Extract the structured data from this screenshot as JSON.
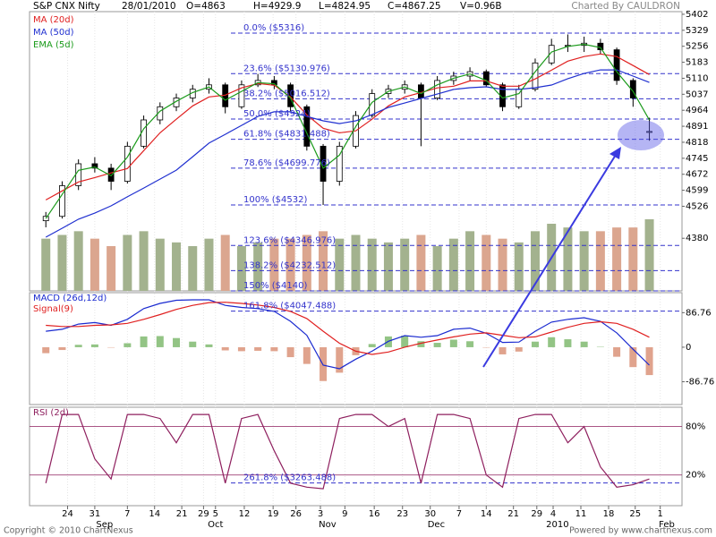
{
  "chart_data": {
    "type": "candlestick",
    "title": "S&P CNX Nifty",
    "date": "28/01/2010",
    "quote_labels": [
      "O=4863",
      "H=4929.9",
      "L=4824.95",
      "C=4867.25",
      "V=0.96B"
    ],
    "credit": "Charted By CAULDRON",
    "footer_left": "Copyright © 2010 ChartNexus",
    "footer_right": "Powered by www.chartnexus.com",
    "xlim": [
      0,
      120
    ],
    "xticks": [
      {
        "value": 7,
        "label": "24"
      },
      {
        "value": 12,
        "label": "31"
      },
      {
        "value": 18,
        "label": "7"
      },
      {
        "value": 23,
        "label": "14"
      },
      {
        "value": 28,
        "label": "21"
      },
      {
        "value": 32,
        "label": "29"
      },
      {
        "value": 34.2,
        "label": "5"
      },
      {
        "value": 39.5,
        "label": "12"
      },
      {
        "value": 44.8,
        "label": "19"
      },
      {
        "value": 49,
        "label": "26"
      },
      {
        "value": 53.5,
        "label": "3"
      },
      {
        "value": 58,
        "label": "9"
      },
      {
        "value": 63.4,
        "label": "16"
      },
      {
        "value": 68.6,
        "label": "23"
      },
      {
        "value": 73.7,
        "label": "30"
      },
      {
        "value": 79,
        "label": "7"
      },
      {
        "value": 84,
        "label": "14"
      },
      {
        "value": 89,
        "label": "21"
      },
      {
        "value": 93.3,
        "label": "29"
      },
      {
        "value": 96.3,
        "label": "4"
      },
      {
        "value": 101.4,
        "label": "11"
      },
      {
        "value": 106.5,
        "label": "18"
      },
      {
        "value": 111.4,
        "label": "25"
      },
      {
        "value": 116,
        "label": "1"
      }
    ],
    "month_ticks": [
      {
        "value": 13.8,
        "label": "Sep"
      },
      {
        "value": 34.2,
        "label": "Oct"
      },
      {
        "value": 54.8,
        "label": "Nov"
      },
      {
        "value": 74.8,
        "label": "Dec"
      },
      {
        "value": 97.1,
        "label": "2010"
      },
      {
        "value": 117.2,
        "label": "Feb"
      }
    ],
    "ylim": [
      4140,
      5414
    ],
    "yticks": [
      5402,
      5329,
      5256,
      5183,
      5110,
      5037,
      4964,
      4891,
      4818,
      4745,
      4672,
      4599,
      4526,
      4380
    ],
    "x": [
      3,
      6,
      9,
      12,
      15,
      18,
      21,
      24,
      27,
      30,
      33,
      36,
      39,
      42,
      45,
      48,
      51,
      54,
      57,
      60,
      63,
      66,
      69,
      72,
      75,
      78,
      81,
      84,
      87,
      90,
      93,
      96,
      99,
      102,
      105,
      108,
      111,
      114
    ],
    "open": [
      4460,
      4480,
      4620,
      4720,
      4700,
      4640,
      4800,
      4920,
      4980,
      5020,
      5060,
      5080,
      4980,
      5080,
      5100,
      5080,
      4980,
      4800,
      4640,
      4800,
      4940,
      5040,
      5060,
      5080,
      5020,
      5100,
      5120,
      5140,
      5080,
      4980,
      5060,
      5180,
      5260,
      5260,
      5270,
      5240,
      5100,
      4863
    ],
    "high": [
      4500,
      4640,
      4740,
      4750,
      4720,
      4820,
      4940,
      5000,
      5040,
      5080,
      5110,
      5090,
      5100,
      5130,
      5120,
      5090,
      4990,
      4810,
      4820,
      4960,
      5060,
      5080,
      5100,
      5090,
      5120,
      5140,
      5160,
      5150,
      5090,
      5080,
      5200,
      5290,
      5310,
      5300,
      5290,
      5250,
      5110,
      4929.9
    ],
    "low": [
      4430,
      4470,
      4600,
      4680,
      4600,
      4630,
      4790,
      4900,
      4960,
      5000,
      5040,
      4950,
      4970,
      5070,
      5060,
      4960,
      4780,
      4532,
      4620,
      4790,
      4930,
      5020,
      5040,
      4800,
      5010,
      5080,
      5100,
      5070,
      4960,
      4970,
      5050,
      5170,
      5230,
      5230,
      5220,
      5080,
      4980,
      4824.95
    ],
    "close": [
      4480,
      4620,
      4720,
      4700,
      4640,
      4800,
      4920,
      4980,
      5020,
      5060,
      5080,
      4980,
      5080,
      5100,
      5080,
      4980,
      4800,
      4640,
      4800,
      4940,
      5040,
      5060,
      5080,
      5020,
      5100,
      5120,
      5140,
      5080,
      4980,
      5060,
      5180,
      5260,
      5260,
      5270,
      5240,
      5100,
      5020,
      4867.25
    ],
    "lines": [
      {
        "name": "MA (20d)",
        "color": "#e02020",
        "values": [
          4555,
          4596,
          4637,
          4657,
          4678,
          4698,
          4780,
          4861,
          4923,
          4984,
          5025,
          5033,
          5066,
          5086,
          5078,
          5025,
          4943,
          4882,
          4861,
          4870,
          4923,
          4984,
          5025,
          5045,
          5066,
          5074,
          5098,
          5098,
          5074,
          5074,
          5107,
          5147,
          5188,
          5209,
          5221,
          5209,
          5168,
          5127
        ]
      },
      {
        "name": "MA (50d)",
        "color": "#2030d0",
        "values": [
          4385,
          4426,
          4467,
          4495,
          4528,
          4569,
          4609,
          4650,
          4691,
          4752,
          4814,
          4854,
          4895,
          4936,
          4957,
          4957,
          4936,
          4916,
          4903,
          4916,
          4944,
          4977,
          4997,
          5018,
          5038,
          5059,
          5067,
          5071,
          5059,
          5059,
          5067,
          5079,
          5108,
          5132,
          5148,
          5148,
          5120,
          5091
        ]
      },
      {
        "name": "EMA (5d)",
        "color": "#1a9a1a",
        "values": [
          4470,
          4580,
          4690,
          4705,
          4665,
          4750,
          4880,
          4960,
          5005,
          5045,
          5070,
          5010,
          5050,
          5090,
          5085,
          5020,
          4860,
          4700,
          4760,
          4890,
          5000,
          5050,
          5070,
          5040,
          5080,
          5110,
          5130,
          5100,
          5020,
          5040,
          5140,
          5230,
          5255,
          5265,
          5250,
          5140,
          5050,
          4920
        ]
      }
    ],
    "volume": {
      "vlim": [
        0,
        1.2
      ],
      "up_color": "#a3b28e",
      "down_color": "#dba68f",
      "values": [
        0.7,
        0.75,
        0.8,
        0.7,
        0.6,
        0.75,
        0.8,
        0.7,
        0.65,
        0.6,
        0.7,
        0.75,
        0.6,
        0.65,
        0.7,
        0.7,
        0.75,
        0.8,
        0.7,
        0.75,
        0.7,
        0.65,
        0.7,
        0.75,
        0.6,
        0.7,
        0.8,
        0.75,
        0.7,
        0.65,
        0.8,
        0.9,
        0.85,
        0.8,
        0.8,
        0.85,
        0.85,
        0.96
      ]
    },
    "fibonacci": {
      "color": "#3333cc",
      "levels": [
        {
          "value": 5316,
          "label": "0.0%  ($5316)"
        },
        {
          "value": 5130.976,
          "label": "23.6%  ($5130.976)"
        },
        {
          "value": 5016.512,
          "label": "38.2%  ($5016.512)"
        },
        {
          "value": 4924,
          "label": "50.0%  ($4924)"
        },
        {
          "value": 4831.488,
          "label": "61.8%  ($4831.488)"
        },
        {
          "value": 4699.776,
          "label": "78.6%  ($4699.776)"
        },
        {
          "value": 4532,
          "label": "100%  ($4532)"
        },
        {
          "value": 4346.976,
          "label": "123.6%  ($4346.976)"
        },
        {
          "value": 4232.512,
          "label": "138.2%  ($4232.512)"
        },
        {
          "value": 4140,
          "label": "150%  ($4140)"
        },
        {
          "value": 4047.488,
          "label": "161.8%  ($4047.488)"
        },
        {
          "value": 3263.488,
          "label": "261.8%  ($3263.488)"
        }
      ]
    },
    "macd": {
      "ylim": [
        -144,
        137
      ],
      "yticks": [
        86.76,
        0,
        -86.76
      ],
      "series": [
        {
          "name": "MACD (26d,12d)",
          "color": "#1a2ad0",
          "values": [
            40,
            45,
            58,
            62,
            55,
            70,
            97,
            110,
            118,
            119,
            119,
            105,
            100,
            97,
            90,
            65,
            30,
            -45,
            -54,
            -30,
            -10,
            15,
            29,
            25,
            29,
            45,
            48,
            35,
            12,
            13,
            40,
            63,
            70,
            74,
            65,
            36,
            -5,
            -45
          ]
        },
        {
          "name": "Signal(9)",
          "color": "#e02020",
          "values": [
            55,
            52,
            52,
            55,
            56,
            60,
            70,
            82,
            95,
            105,
            112,
            113,
            110,
            106,
            100,
            90,
            72,
            40,
            10,
            -10,
            -18,
            -12,
            0,
            10,
            18,
            26,
            33,
            36,
            30,
            24,
            26,
            38,
            50,
            60,
            64,
            60,
            45,
            25
          ]
        }
      ],
      "histogram": {
        "up_color": "#93c485",
        "down_color": "#e0a38d",
        "values": [
          -15,
          -7,
          6,
          7,
          -1,
          10,
          27,
          28,
          23,
          14,
          7,
          -8,
          -10,
          -9,
          -10,
          -25,
          -42,
          -85,
          -64,
          -20,
          8,
          27,
          29,
          15,
          11,
          19,
          15,
          -1,
          -18,
          -11,
          14,
          25,
          20,
          14,
          1,
          -24,
          -50,
          -70
        ]
      }
    },
    "rsi": {
      "name": "RSI (2d)",
      "color": "#8e1f5e",
      "ylim": [
        -18,
        104
      ],
      "yticks": [
        {
          "value": 80,
          "label": "80%"
        },
        {
          "value": 20,
          "label": "20%"
        }
      ],
      "values": [
        10,
        95,
        95,
        40,
        15,
        95,
        95,
        90,
        60,
        95,
        95,
        10,
        90,
        95,
        50,
        10,
        5,
        3,
        90,
        95,
        95,
        80,
        90,
        10,
        95,
        95,
        90,
        20,
        5,
        90,
        95,
        95,
        60,
        80,
        30,
        5,
        8,
        15
      ]
    }
  }
}
